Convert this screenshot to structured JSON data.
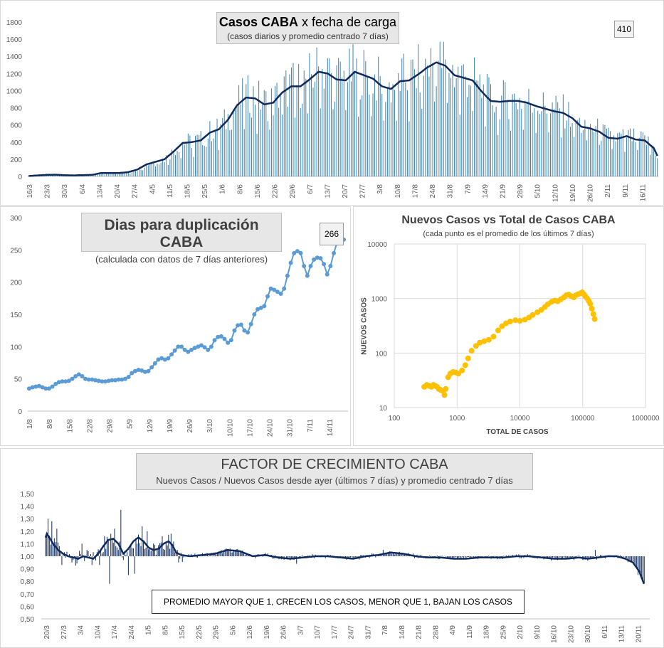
{
  "chart_data": [
    {
      "type": "bar",
      "title": "Casos CABA x fecha de carga",
      "title_bold": "Casos CABA",
      "title_rest": "x fecha de carga",
      "subtitle": "(casos diarios y promedio centrado 7 días)",
      "annotation": "410",
      "ylim": [
        0,
        1800
      ],
      "yticks": [
        "0",
        "200",
        "400",
        "600",
        "800",
        "1000",
        "1200",
        "1400",
        "1600",
        "1800"
      ],
      "xticks": [
        "16/3",
        "23/3",
        "30/3",
        "6/4",
        "13/4",
        "20/4",
        "27/4",
        "4/5",
        "11/5",
        "18/5",
        "25/5",
        "1/6",
        "8/6",
        "15/6",
        "22/6",
        "29/6",
        "6/7",
        "13/7",
        "20/7",
        "27/7",
        "3/8",
        "10/8",
        "17/8",
        "24/8",
        "31/8",
        "7/9",
        "14/9",
        "21/9",
        "28/9",
        "5/10",
        "12/10",
        "19/10",
        "26/10",
        "2/11",
        "9/11",
        "16/11"
      ],
      "avg_keypoints": [
        [
          0,
          5
        ],
        [
          5,
          12
        ],
        [
          10,
          18
        ],
        [
          15,
          20
        ],
        [
          20,
          14
        ],
        [
          25,
          12
        ],
        [
          30,
          15
        ],
        [
          35,
          18
        ],
        [
          40,
          40
        ],
        [
          45,
          40
        ],
        [
          50,
          40
        ],
        [
          55,
          50
        ],
        [
          60,
          80
        ],
        [
          65,
          140
        ],
        [
          70,
          170
        ],
        [
          75,
          200
        ],
        [
          80,
          290
        ],
        [
          85,
          390
        ],
        [
          90,
          400
        ],
        [
          95,
          420
        ],
        [
          100,
          510
        ],
        [
          105,
          550
        ],
        [
          110,
          660
        ],
        [
          115,
          830
        ],
        [
          120,
          920
        ],
        [
          125,
          910
        ],
        [
          130,
          840
        ],
        [
          135,
          860
        ],
        [
          140,
          980
        ],
        [
          145,
          1050
        ],
        [
          150,
          1050
        ],
        [
          155,
          1130
        ],
        [
          160,
          1220
        ],
        [
          165,
          1200
        ],
        [
          170,
          1130
        ],
        [
          175,
          1120
        ],
        [
          180,
          1220
        ],
        [
          185,
          1180
        ],
        [
          190,
          1140
        ],
        [
          195,
          1050
        ],
        [
          200,
          1020
        ],
        [
          205,
          1110
        ],
        [
          210,
          1120
        ],
        [
          215,
          1190
        ],
        [
          220,
          1270
        ],
        [
          225,
          1330
        ],
        [
          230,
          1290
        ],
        [
          235,
          1180
        ],
        [
          240,
          1150
        ],
        [
          245,
          1120
        ],
        [
          250,
          990
        ],
        [
          255,
          880
        ],
        [
          260,
          870
        ],
        [
          265,
          880
        ],
        [
          270,
          880
        ],
        [
          275,
          860
        ],
        [
          280,
          820
        ],
        [
          285,
          790
        ],
        [
          290,
          760
        ],
        [
          295,
          740
        ],
        [
          300,
          680
        ],
        [
          305,
          580
        ],
        [
          310,
          560
        ],
        [
          315,
          520
        ],
        [
          320,
          450
        ],
        [
          325,
          440
        ],
        [
          330,
          470
        ],
        [
          335,
          430
        ],
        [
          340,
          420
        ],
        [
          345,
          330
        ],
        [
          347,
          240
        ]
      ],
      "bar_peak": 1570,
      "series": [
        {
          "name": "casos diarios"
        },
        {
          "name": "promedio centrado 7 días"
        }
      ]
    },
    {
      "type": "line",
      "title": "Dias para duplicación CABA",
      "subtitle": "(calculada con datos de 7 días anteriores)",
      "annotation": "266",
      "ylim": [
        0,
        300
      ],
      "yticks": [
        "0",
        "50",
        "100",
        "150",
        "200",
        "250",
        "300"
      ],
      "xticks": [
        "1/8",
        "8/8",
        "15/8",
        "22/8",
        "29/8",
        "5/9",
        "12/9",
        "19/9",
        "26/9",
        "3/10",
        "10/10",
        "17/10",
        "24/10",
        "31/10",
        "7/11",
        "14/11"
      ],
      "values": [
        35,
        37,
        38,
        39,
        37,
        35,
        35,
        38,
        42,
        45,
        46,
        46,
        47,
        50,
        54,
        57,
        54,
        50,
        49,
        49,
        48,
        47,
        46,
        46,
        47,
        48,
        48,
        49,
        49,
        50,
        53,
        59,
        62,
        64,
        63,
        61,
        62,
        68,
        74,
        80,
        82,
        80,
        82,
        88,
        94,
        100,
        100,
        95,
        92,
        95,
        98,
        100,
        102,
        99,
        95,
        100,
        110,
        115,
        116,
        112,
        106,
        110,
        125,
        133,
        134,
        125,
        122,
        135,
        150,
        158,
        160,
        163,
        178,
        190,
        188,
        185,
        182,
        190,
        210,
        230,
        245,
        248,
        245,
        225,
        210,
        225,
        235,
        238,
        237,
        228,
        212,
        225,
        245,
        262,
        266,
        266
      ]
    },
    {
      "type": "scatter",
      "title": "Nuevos Casos vs Total de Casos CABA",
      "subtitle": "(cada punto es el promedio de los últimos 7 días)",
      "xlabel": "TOTAL DE CASOS",
      "ylabel": "NUEVOS CASOS",
      "xscale": "log",
      "yscale": "log",
      "xlim": [
        100,
        1000000
      ],
      "ylim": [
        10,
        10000
      ],
      "xticks": [
        "100",
        "1000",
        "10000",
        "100000",
        "1000000"
      ],
      "yticks": [
        "10",
        "100",
        "1000",
        "10000"
      ],
      "points": [
        [
          300,
          24
        ],
        [
          330,
          26
        ],
        [
          360,
          25
        ],
        [
          390,
          24
        ],
        [
          420,
          26
        ],
        [
          450,
          25
        ],
        [
          480,
          24
        ],
        [
          510,
          22
        ],
        [
          550,
          21
        ],
        [
          600,
          20
        ],
        [
          630,
          17
        ],
        [
          660,
          22
        ],
        [
          720,
          36
        ],
        [
          780,
          42
        ],
        [
          860,
          45
        ],
        [
          950,
          44
        ],
        [
          1050,
          42
        ],
        [
          1200,
          48
        ],
        [
          1350,
          60
        ],
        [
          1500,
          80
        ],
        [
          1700,
          110
        ],
        [
          2000,
          135
        ],
        [
          2300,
          155
        ],
        [
          2700,
          165
        ],
        [
          3200,
          175
        ],
        [
          3800,
          200
        ],
        [
          4500,
          260
        ],
        [
          5200,
          310
        ],
        [
          6000,
          350
        ],
        [
          7000,
          380
        ],
        [
          8500,
          400
        ],
        [
          10000,
          390
        ],
        [
          12000,
          410
        ],
        [
          14000,
          450
        ],
        [
          16000,
          500
        ],
        [
          19000,
          560
        ],
        [
          22000,
          620
        ],
        [
          25000,
          700
        ],
        [
          28000,
          790
        ],
        [
          32000,
          870
        ],
        [
          36000,
          920
        ],
        [
          40000,
          890
        ],
        [
          45000,
          970
        ],
        [
          50000,
          1050
        ],
        [
          55000,
          1150
        ],
        [
          60000,
          1180
        ],
        [
          66000,
          1100
        ],
        [
          72000,
          1050
        ],
        [
          78000,
          1150
        ],
        [
          85000,
          1200
        ],
        [
          92000,
          1240
        ],
        [
          98000,
          1300
        ],
        [
          104000,
          1200
        ],
        [
          110000,
          1100
        ],
        [
          118000,
          1000
        ],
        [
          125000,
          900
        ],
        [
          132000,
          800
        ],
        [
          140000,
          650
        ],
        [
          148000,
          520
        ],
        [
          155000,
          420
        ]
      ]
    },
    {
      "type": "line",
      "title": "FACTOR DE CRECIMIENTO CABA",
      "subtitle": "Nuevos Casos  / Nuevos Casos desde ayer (últimos 7 días) y promedio  centrado  7 días",
      "note": "PROMEDIO MAYOR QUE 1, CRECEN LOS CASOS, MENOR QUE 1, BAJAN LOS CASOS",
      "ylim": [
        0.5,
        1.5
      ],
      "yticks": [
        "0,50",
        "0,60",
        "0,70",
        "0,80",
        "0,90",
        "1,00",
        "1,10",
        "1,20",
        "1,30",
        "1,40",
        "1,50"
      ],
      "xticks": [
        "20/3",
        "27/3",
        "3/4",
        "10/4",
        "17/4",
        "24/4",
        "1/5",
        "8/5",
        "15/5",
        "22/5",
        "29/5",
        "5/6",
        "12/6",
        "19/6",
        "26/6",
        "3/7",
        "10/7",
        "17/7",
        "24/7",
        "31/7",
        "7/8",
        "14/8",
        "21/8",
        "28/8",
        "4/9",
        "11/9",
        "18/9",
        "25/9",
        "2/10",
        "9/10",
        "16/10",
        "23/10",
        "30/10",
        "6/11",
        "13/11",
        "20/11"
      ],
      "avg_keypoints": [
        [
          0,
          1.15
        ],
        [
          1,
          1.18
        ],
        [
          3,
          1.15
        ],
        [
          6,
          1.1
        ],
        [
          10,
          1.05
        ],
        [
          14,
          1.02
        ],
        [
          18,
          1.0
        ],
        [
          22,
          0.99
        ],
        [
          26,
          0.98
        ],
        [
          30,
          1.0
        ],
        [
          34,
          0.99
        ],
        [
          38,
          0.98
        ],
        [
          42,
          1.02
        ],
        [
          46,
          1.08
        ],
        [
          50,
          1.13
        ],
        [
          54,
          1.14
        ],
        [
          58,
          1.1
        ],
        [
          62,
          1.02
        ],
        [
          66,
          1.06
        ],
        [
          70,
          1.12
        ],
        [
          74,
          1.15
        ],
        [
          78,
          1.12
        ],
        [
          82,
          1.07
        ],
        [
          86,
          1.05
        ],
        [
          90,
          1.06
        ],
        [
          94,
          1.1
        ],
        [
          98,
          1.12
        ],
        [
          101,
          1.09
        ],
        [
          104,
          1.03
        ],
        [
          108,
          1.01
        ],
        [
          115,
          1.0
        ],
        [
          125,
          1.01
        ],
        [
          135,
          1.02
        ],
        [
          145,
          1.05
        ],
        [
          155,
          1.04
        ],
        [
          165,
          1.0
        ],
        [
          175,
          1.01
        ],
        [
          185,
          0.99
        ],
        [
          195,
          0.98
        ],
        [
          205,
          0.99
        ],
        [
          215,
          1.0
        ],
        [
          225,
          1.0
        ],
        [
          235,
          0.99
        ],
        [
          245,
          0.98
        ],
        [
          255,
          1.0
        ],
        [
          265,
          1.01
        ],
        [
          275,
          1.03
        ],
        [
          285,
          1.02
        ],
        [
          295,
          1.0
        ],
        [
          305,
          0.99
        ],
        [
          315,
          0.99
        ],
        [
          325,
          0.98
        ],
        [
          335,
          0.98
        ],
        [
          345,
          0.99
        ],
        [
          355,
          0.99
        ],
        [
          365,
          0.99
        ],
        [
          375,
          1.0
        ],
        [
          385,
          1.0
        ],
        [
          395,
          0.99
        ],
        [
          405,
          0.98
        ],
        [
          415,
          0.98
        ],
        [
          425,
          0.99
        ],
        [
          432,
          0.98
        ],
        [
          440,
          0.99
        ],
        [
          448,
          1.0
        ],
        [
          455,
          1.0
        ],
        [
          462,
          0.98
        ],
        [
          468,
          0.95
        ],
        [
          473,
          0.88
        ],
        [
          476,
          0.8
        ],
        [
          477,
          0.78
        ]
      ],
      "spikes": [
        [
          2,
          1.3
        ],
        [
          5,
          1.28
        ],
        [
          9,
          1.22
        ],
        [
          13,
          0.93
        ],
        [
          21,
          0.95
        ],
        [
          29,
          1.1
        ],
        [
          37,
          0.93
        ],
        [
          43,
          0.93
        ],
        [
          47,
          1.16
        ],
        [
          51,
          0.78
        ],
        [
          55,
          1.22
        ],
        [
          60,
          1.37
        ],
        [
          66,
          0.85
        ],
        [
          71,
          0.86
        ],
        [
          77,
          1.24
        ],
        [
          81,
          1.2
        ],
        [
          93,
          1.16
        ],
        [
          100,
          1.18
        ],
        [
          106,
          0.95
        ],
        [
          200,
          0.94
        ],
        [
          269,
          1.05
        ],
        [
          438,
          1.05
        ],
        [
          472,
          0.85
        ],
        [
          476,
          0.78
        ]
      ],
      "bar_count": 478
    }
  ],
  "colors": {
    "bars": "#3b82b6",
    "avg_line": "#0f2a5c",
    "dup_line": "#5b9bd5",
    "scatter": "#ffc000",
    "axis": "#bfbfbf",
    "grid": "#d9d9d9",
    "tick_text": "#595959"
  }
}
